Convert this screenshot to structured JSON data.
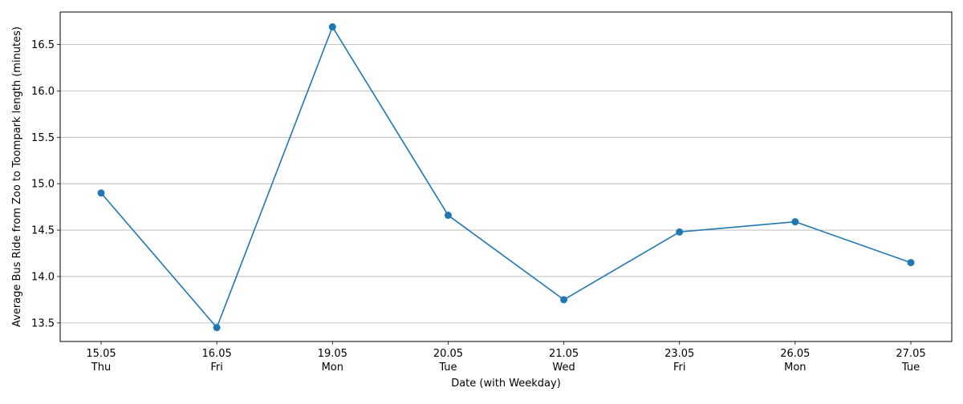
{
  "chart_data": {
    "type": "line",
    "title": "",
    "xlabel": "Date (with Weekday)",
    "ylabel": "Average Bus Ride from Zoo to Toompark length (minutes)",
    "categories": [
      {
        "date": "15.05",
        "weekday": "Thu"
      },
      {
        "date": "16.05",
        "weekday": "Fri"
      },
      {
        "date": "19.05",
        "weekday": "Mon"
      },
      {
        "date": "20.05",
        "weekday": "Tue"
      },
      {
        "date": "21.05",
        "weekday": "Wed"
      },
      {
        "date": "23.05",
        "weekday": "Fri"
      },
      {
        "date": "26.05",
        "weekday": "Mon"
      },
      {
        "date": "27.05",
        "weekday": "Tue"
      }
    ],
    "series": [
      {
        "values": [
          14.9,
          13.45,
          16.69,
          14.66,
          13.75,
          14.48,
          14.59,
          14.15
        ],
        "color": "#1f77b4",
        "marker": "circle"
      }
    ],
    "ylim": [
      13.3,
      16.85
    ],
    "yticks": [
      13.5,
      14.0,
      14.5,
      15.0,
      15.5,
      16.0,
      16.5
    ],
    "ytick_labels": [
      "13.5",
      "14.0",
      "14.5",
      "15.0",
      "15.5",
      "16.0",
      "16.5"
    ],
    "grid": {
      "x": false,
      "y": true
    },
    "legend": "none"
  }
}
